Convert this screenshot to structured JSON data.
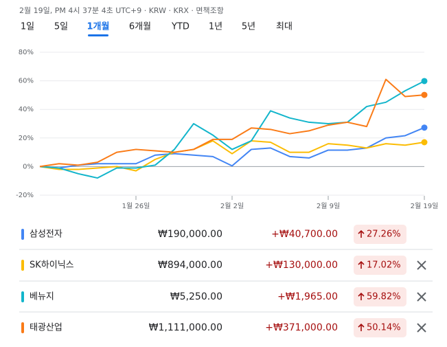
{
  "header": {
    "timestamp": "2월 19일, PM 4시 37분 4초 UTC+9 · KRW · KRX · 면책조항"
  },
  "tabs": [
    "1일",
    "5일",
    "1개월",
    "6개월",
    "YTD",
    "1년",
    "5년",
    "최대"
  ],
  "selected_tab": 2,
  "chart_data": {
    "type": "line",
    "categories": [
      null,
      null,
      null,
      null,
      null,
      "1월 26일",
      null,
      null,
      null,
      null,
      "2월 2일",
      null,
      null,
      null,
      null,
      "2월 9일",
      null,
      null,
      null,
      null,
      "2월 19일"
    ],
    "ylim": [
      -20,
      80
    ],
    "yticks": [
      {
        "value": 80,
        "label": "80%"
      },
      {
        "value": 60,
        "label": "60%"
      },
      {
        "value": 40,
        "label": "40%"
      },
      {
        "value": 20,
        "label": "20%"
      },
      {
        "value": 0,
        "label": "0%"
      },
      {
        "value": -20,
        "label": "-20%"
      }
    ],
    "grid": true,
    "series": [
      {
        "name": "삼성전자",
        "color": "#4285f4",
        "values": [
          0,
          -1,
          1,
          2,
          2,
          2,
          8,
          9,
          8,
          7,
          0.5,
          12,
          13,
          7,
          6,
          11.5,
          11.5,
          13,
          20,
          21.6,
          27.26
        ]
      },
      {
        "name": "SK하이닉스",
        "color": "#fbbc04",
        "values": [
          0,
          -2,
          -2,
          -1,
          0,
          -3,
          5,
          10,
          12,
          18,
          9,
          18,
          17,
          10,
          10,
          16,
          15,
          13,
          16,
          15,
          17.02
        ]
      },
      {
        "name": "베뉴지",
        "color": "#12b5cb",
        "values": [
          0,
          -1,
          -5,
          -8,
          -1,
          -1,
          1,
          12,
          30,
          22,
          12,
          18,
          39,
          34,
          31,
          30,
          31,
          42,
          45,
          53,
          59.82
        ]
      },
      {
        "name": "태광산업",
        "color": "#fa7b17",
        "values": [
          0,
          2,
          1,
          3,
          10,
          12,
          11,
          10,
          12,
          19,
          19,
          27,
          26,
          23,
          25,
          29,
          31,
          28,
          61,
          49,
          50.14
        ]
      }
    ]
  },
  "table": {
    "rows": [
      [
        "삼성전자",
        "₩190,000.00",
        "+₩40,700.00",
        "27.26%"
      ],
      [
        "SK하이닉스",
        "₩894,000.00",
        "+₩130,000.00",
        "17.02%"
      ],
      [
        "베뉴지",
        "₩5,250.00",
        "+₩1,965.00",
        "59.82%"
      ],
      [
        "태광산업",
        "₩1,111,000.00",
        "+₩371,000.00",
        "50.14%"
      ]
    ],
    "removable": [
      false,
      true,
      true,
      true
    ]
  }
}
